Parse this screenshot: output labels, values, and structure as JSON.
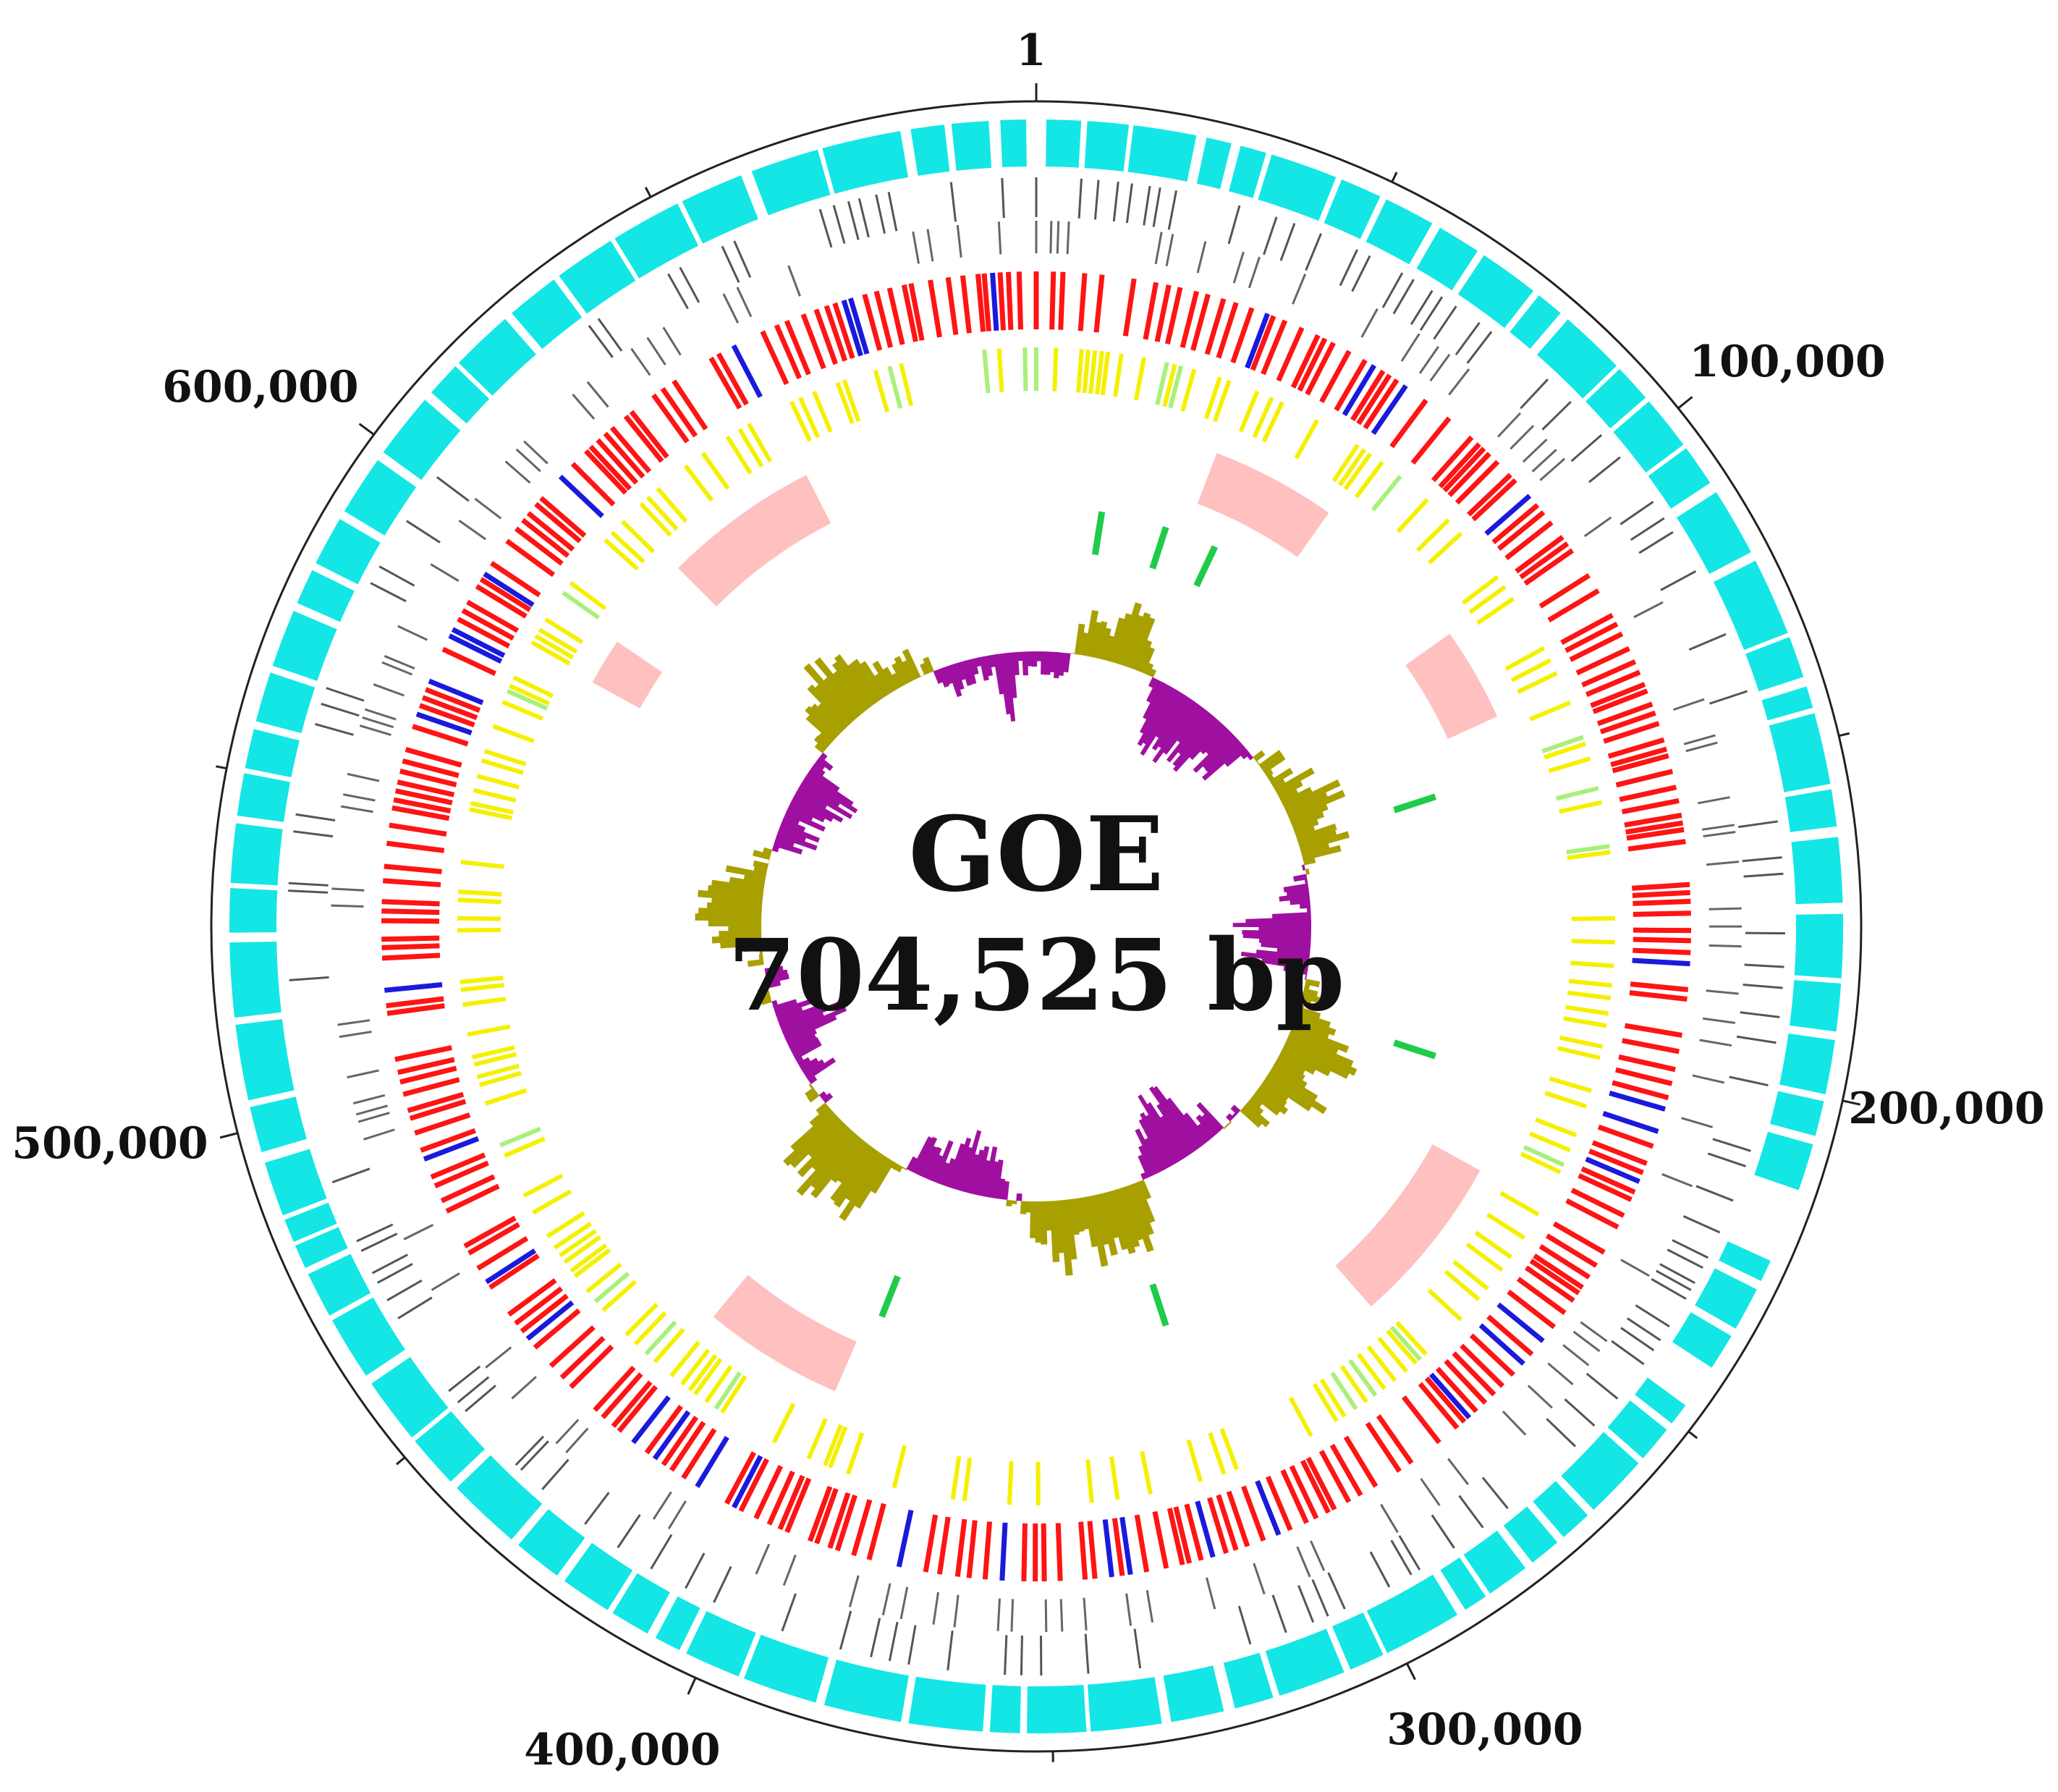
{
  "title": "GOE",
  "genome_length_bp": 704525,
  "genome_size_label": "704,525 bp",
  "tick_labels": [
    {
      "position": 1,
      "label": "1"
    },
    {
      "position": 100000,
      "label": "100,000"
    },
    {
      "position": 200000,
      "label": "200,000"
    },
    {
      "position": 300000,
      "label": "300,000"
    },
    {
      "position": 400000,
      "label": "400,000"
    },
    {
      "position": 500000,
      "label": "500,000"
    },
    {
      "position": 600000,
      "label": "600,000"
    }
  ],
  "minor_tick_positions": [
    50000,
    150000,
    250000,
    350000,
    450000,
    550000,
    650000
  ],
  "tracks": [
    {
      "id": "outer-cds",
      "color": "#14e6e6",
      "density": 1.0,
      "seed": 11
    },
    {
      "id": "gray-features-outer",
      "color": "#555555",
      "density": 0.35,
      "seed": 23
    },
    {
      "id": "gray-features-inner",
      "color": "#666666",
      "density": 0.3,
      "seed": 37
    },
    {
      "id": "red-blue-cds",
      "color": "#ff1414",
      "alt_color": "#1a1adc",
      "alt_ratio": 0.12,
      "density": 0.85,
      "seed": 41
    },
    {
      "id": "yellow-features",
      "color": "#f5f000",
      "alt_color": "#a8f07a",
      "alt_ratio": 0.15,
      "density": 0.45,
      "seed": 53
    },
    {
      "id": "pink-blocks",
      "color": "#ffc0c0",
      "seed": 67
    },
    {
      "id": "green-features",
      "color": "#1fcc4a",
      "seed": 71
    }
  ],
  "pink_blocks": [
    [
      0.875,
      0.925
    ],
    [
      0.058,
      0.098
    ],
    [
      0.152,
      0.182
    ],
    [
      0.33,
      0.385
    ],
    [
      0.565,
      0.61
    ],
    [
      0.83,
      0.845
    ]
  ],
  "green_marks": [
    0.025,
    0.05,
    0.07,
    0.2,
    0.3,
    0.45,
    0.56
  ],
  "gc_skew": {
    "positive_color": "#a8a000",
    "negative_color": "#a010a0",
    "seed": 97
  },
  "colors": {
    "circle_outline": "#222222",
    "text": "#111111"
  }
}
